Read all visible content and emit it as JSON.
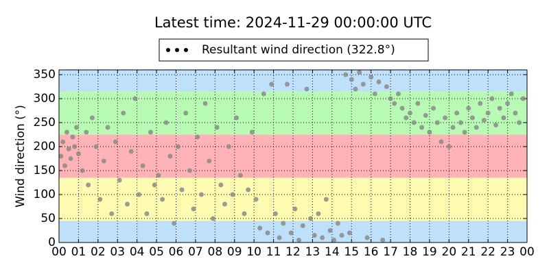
{
  "chart_data": {
    "type": "scatter",
    "title": "Latest time: 2024-11-29 00:00:00 UTC",
    "y_label": "Wind direction (°)",
    "series": [
      {
        "name": "Resultant wind direction (322.8°)",
        "color": "#8a8a8a",
        "x": [
          0.1,
          0.2,
          0.3,
          0.4,
          0.5,
          0.6,
          0.7,
          0.8,
          0.9,
          1.0,
          1.2,
          1.4,
          1.5,
          1.7,
          1.9,
          2.1,
          2.3,
          2.5,
          2.7,
          2.9,
          3.1,
          3.3,
          3.5,
          3.7,
          3.9,
          4.1,
          4.3,
          4.5,
          4.7,
          4.9,
          5.1,
          5.3,
          5.5,
          5.7,
          5.9,
          6.1,
          6.3,
          6.5,
          6.7,
          6.9,
          7.1,
          7.3,
          7.5,
          7.7,
          7.9,
          8.1,
          8.3,
          8.5,
          8.7,
          8.9,
          9.1,
          9.3,
          9.5,
          9.7,
          9.9,
          10.1,
          10.3,
          10.5,
          10.7,
          10.9,
          11.1,
          11.3,
          11.5,
          11.7,
          11.9,
          12.1,
          12.3,
          12.5,
          12.7,
          12.9,
          13.1,
          13.3,
          13.5,
          13.7,
          13.9,
          14.1,
          14.3,
          14.5,
          14.7,
          14.9,
          15.0,
          15.2,
          15.4,
          15.6,
          15.8,
          16.0,
          16.2,
          16.4,
          16.6,
          16.8,
          17.0,
          17.2,
          17.4,
          17.6,
          17.8,
          18.0,
          18.2,
          18.4,
          18.6,
          18.8,
          19.0,
          19.2,
          19.4,
          19.6,
          19.8,
          20.0,
          20.2,
          20.4,
          20.6,
          20.8,
          21.0,
          21.2,
          21.4,
          21.6,
          21.8,
          22.0,
          22.2,
          22.4,
          22.6,
          22.8,
          23.0,
          23.2,
          23.4,
          23.6,
          23.8
        ],
        "values": [
          180,
          210,
          160,
          230,
          195,
          175,
          220,
          200,
          240,
          185,
          150,
          230,
          120,
          260,
          200,
          90,
          170,
          240,
          60,
          210,
          130,
          270,
          80,
          190,
          300,
          100,
          160,
          60,
          230,
          120,
          140,
          90,
          250,
          180,
          40,
          200,
          110,
          270,
          150,
          70,
          220,
          100,
          290,
          170,
          50,
          240,
          120,
          80,
          200,
          100,
          260,
          140,
          60,
          110,
          230,
          90,
          30,
          310,
          20,
          330,
          60,
          10,
          40,
          330,
          20,
          70,
          5,
          35,
          320,
          50,
          15,
          60,
          10,
          90,
          25,
          5,
          40,
          15,
          350,
          20,
          340,
          320,
          355,
          330,
          10,
          345,
          310,
          335,
          5,
          325,
          300,
          290,
          310,
          280,
          260,
          270,
          250,
          290,
          240,
          265,
          230,
          280,
          250,
          210,
          260,
          200,
          240,
          270,
          250,
          230,
          280,
          260,
          240,
          290,
          255,
          270,
          300,
          245,
          280,
          260,
          290,
          310,
          270,
          250,
          300
        ]
      }
    ],
    "xlim": [
      0,
      24
    ],
    "xticks": [
      {
        "value": 0,
        "label": "00"
      },
      {
        "value": 1,
        "label": "01"
      },
      {
        "value": 2,
        "label": "02"
      },
      {
        "value": 3,
        "label": "03"
      },
      {
        "value": 4,
        "label": "04"
      },
      {
        "value": 5,
        "label": "05"
      },
      {
        "value": 6,
        "label": "06"
      },
      {
        "value": 7,
        "label": "07"
      },
      {
        "value": 8,
        "label": "08"
      },
      {
        "value": 9,
        "label": "09"
      },
      {
        "value": 10,
        "label": "10"
      },
      {
        "value": 11,
        "label": "11"
      },
      {
        "value": 12,
        "label": "12"
      },
      {
        "value": 13,
        "label": "13"
      },
      {
        "value": 14,
        "label": "14"
      },
      {
        "value": 15,
        "label": "15"
      },
      {
        "value": 16,
        "label": "16"
      },
      {
        "value": 17,
        "label": "17"
      },
      {
        "value": 18,
        "label": "18"
      },
      {
        "value": 19,
        "label": "19"
      },
      {
        "value": 20,
        "label": "20"
      },
      {
        "value": 21,
        "label": "21"
      },
      {
        "value": 22,
        "label": "22"
      },
      {
        "value": 23,
        "label": "23"
      },
      {
        "value": 24,
        "label": "00"
      }
    ],
    "ylim": [
      0,
      360
    ],
    "yticks": [
      0,
      50,
      100,
      150,
      200,
      250,
      300,
      350
    ],
    "grid": true,
    "legend": "top",
    "bands": [
      {
        "from": 0,
        "to": 45,
        "color": "#bfe0fb"
      },
      {
        "from": 45,
        "to": 135,
        "color": "#fffbb0"
      },
      {
        "from": 135,
        "to": 225,
        "color": "#ffb3b7"
      },
      {
        "from": 225,
        "to": 315,
        "color": "#b8fbb4"
      },
      {
        "from": 315,
        "to": 360,
        "color": "#bfe0fb"
      }
    ]
  }
}
